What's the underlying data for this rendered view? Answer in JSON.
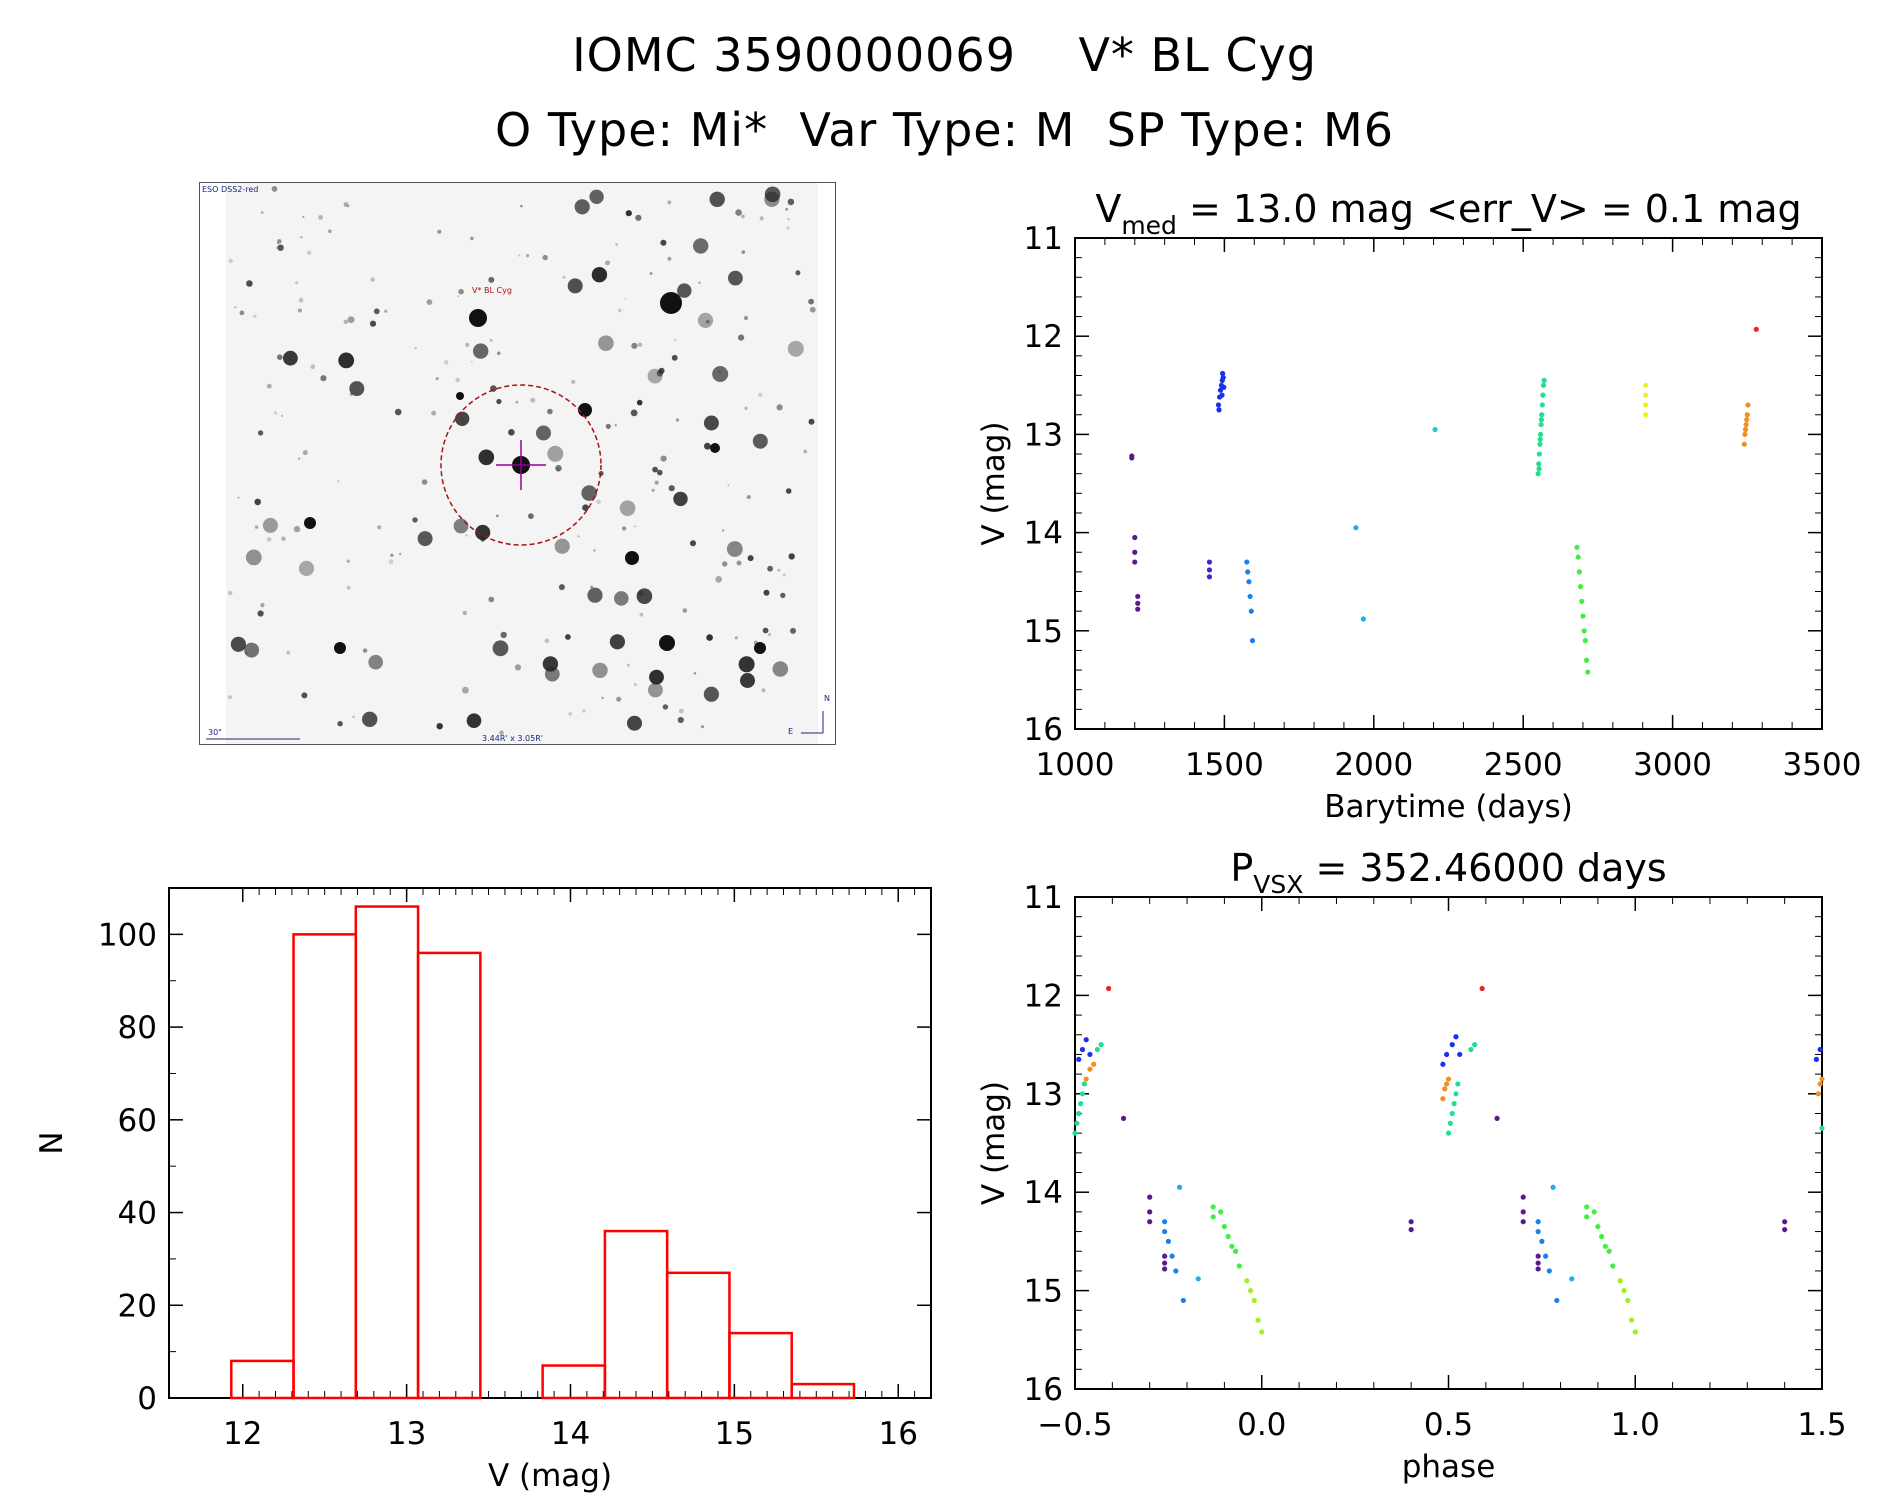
{
  "title": {
    "line1": "IOMC 3590000069    V* BL Cyg",
    "line2": "O Type: Mi*  Var Type: M  SP Type: M6"
  },
  "finder": {
    "survey_label": "ESO DSS2-red",
    "target_label": "V* BL Cyg",
    "scale_label": "30\"",
    "fov_label": "3.44R' x 3.05R'",
    "compass_north": "N",
    "compass_east": "E"
  },
  "chart_data": [
    {
      "id": "lightcurve",
      "type": "scatter",
      "title_main": "V",
      "title_sub": "med",
      "title_rest": " = 13.0 mag <err_V> = 0.1 mag",
      "xlabel": "Barytime (days)",
      "ylabel": "V (mag)",
      "xlim": [
        1000,
        3500
      ],
      "ylim": [
        11,
        16
      ],
      "y_inverted": true,
      "xticks": [
        1000,
        1500,
        2000,
        2500,
        3000,
        3500
      ],
      "yticks": [
        11,
        12,
        13,
        14,
        15,
        16
      ],
      "series": [
        {
          "name": "s1",
          "color": "#5a1a8c",
          "points": [
            [
              1190,
              13.22
            ],
            [
              1190,
              13.24
            ],
            [
              1200,
              14.05
            ],
            [
              1200,
              14.2
            ],
            [
              1200,
              14.3
            ],
            [
              1210,
              14.65
            ],
            [
              1210,
              14.72
            ],
            [
              1210,
              14.78
            ]
          ]
        },
        {
          "name": "s2",
          "color": "#3a2ad0",
          "points": [
            [
              1450,
              14.3
            ],
            [
              1450,
              14.38
            ],
            [
              1450,
              14.45
            ]
          ]
        },
        {
          "name": "s3",
          "color": "#1a2ff0",
          "points": [
            [
              1480,
              12.7
            ],
            [
              1484,
              12.62
            ],
            [
              1487,
              12.55
            ],
            [
              1490,
              12.5
            ],
            [
              1493,
              12.45
            ],
            [
              1496,
              12.42
            ],
            [
              1482,
              12.75
            ],
            [
              1492,
              12.6
            ],
            [
              1498,
              12.52
            ],
            [
              1494,
              12.38
            ]
          ]
        },
        {
          "name": "s4",
          "color": "#1a7ff0",
          "points": [
            [
              1575,
              14.3
            ],
            [
              1578,
              14.4
            ],
            [
              1582,
              14.5
            ],
            [
              1586,
              14.65
            ],
            [
              1590,
              14.8
            ],
            [
              1594,
              15.1
            ]
          ]
        },
        {
          "name": "s5",
          "color": "#1ab0f0",
          "points": [
            [
              1940,
              13.95
            ],
            [
              1965,
              14.88
            ]
          ]
        },
        {
          "name": "s6",
          "color": "#20d0d0",
          "points": [
            [
              2205,
              12.95
            ]
          ]
        },
        {
          "name": "s7",
          "color": "#20e090",
          "points": [
            [
              2550,
              13.4
            ],
            [
              2552,
              13.3
            ],
            [
              2554,
              13.2
            ],
            [
              2556,
              13.1
            ],
            [
              2558,
              13.0
            ],
            [
              2560,
              12.9
            ],
            [
              2562,
              12.8
            ],
            [
              2564,
              12.7
            ],
            [
              2566,
              12.6
            ],
            [
              2568,
              12.5
            ],
            [
              2570,
              12.45
            ],
            [
              2553,
              13.35
            ],
            [
              2557,
              13.05
            ],
            [
              2561,
              12.85
            ]
          ]
        },
        {
          "name": "s8",
          "color": "#40f040",
          "points": [
            [
              2680,
              14.15
            ],
            [
              2684,
              14.25
            ],
            [
              2688,
              14.4
            ],
            [
              2692,
              14.55
            ],
            [
              2696,
              14.7
            ],
            [
              2700,
              14.85
            ],
            [
              2704,
              15.0
            ],
            [
              2708,
              15.1
            ],
            [
              2712,
              15.3
            ],
            [
              2716,
              15.42
            ]
          ]
        },
        {
          "name": "s9",
          "color": "#f0f020",
          "points": [
            [
              2910,
              12.5
            ],
            [
              2910,
              12.6
            ],
            [
              2910,
              12.7
            ],
            [
              2910,
              12.8
            ]
          ]
        },
        {
          "name": "s10",
          "color": "#f09020",
          "points": [
            [
              3240,
              13.1
            ],
            [
              3242,
              13.0
            ],
            [
              3244,
              12.95
            ],
            [
              3246,
              12.9
            ],
            [
              3248,
              12.85
            ],
            [
              3250,
              12.8
            ],
            [
              3252,
              12.7
            ]
          ]
        },
        {
          "name": "s11",
          "color": "#f02020",
          "points": [
            [
              3280,
              11.93
            ]
          ]
        }
      ]
    },
    {
      "id": "histogram",
      "type": "bar",
      "xlabel": "V (mag)",
      "ylabel": "N",
      "xlim": [
        11.55,
        16.2
      ],
      "ylim": [
        0,
        110
      ],
      "xticks": [
        12,
        13,
        14,
        15,
        16
      ],
      "yticks": [
        0,
        20,
        40,
        60,
        80,
        100
      ],
      "bin_edges": [
        11.93,
        12.31,
        12.69,
        13.07,
        13.45,
        13.83,
        14.21,
        14.59,
        14.97,
        15.35,
        15.73
      ],
      "values": [
        8,
        100,
        106,
        96,
        0,
        7,
        36,
        27,
        14,
        3
      ],
      "bar_color": "#ff0000"
    },
    {
      "id": "phased",
      "type": "scatter",
      "title_main": "P",
      "title_sub": "VSX",
      "title_rest": " = 352.46000 days",
      "xlabel": "phase",
      "ylabel": "V (mag)",
      "xlim": [
        -0.5,
        1.5
      ],
      "ylim": [
        11,
        16
      ],
      "y_inverted": true,
      "xticks": [
        -0.5,
        0.0,
        0.5,
        1.0,
        1.5
      ],
      "xtick_labels": [
        "−0.5",
        "0.0",
        "0.5",
        "1.0",
        "1.5"
      ],
      "yticks": [
        11,
        12,
        13,
        14,
        15,
        16
      ],
      "series": [
        {
          "name": "p1",
          "color": "#f02020",
          "points": [
            [
              -0.41,
              11.93
            ],
            [
              0.59,
              11.93
            ]
          ]
        },
        {
          "name": "p2",
          "color": "#1a2ff0",
          "points": [
            [
              -0.49,
              12.65
            ],
            [
              -0.48,
              12.55
            ],
            [
              -0.47,
              12.45
            ],
            [
              -0.46,
              12.6
            ],
            [
              0.485,
              12.7
            ],
            [
              0.495,
              12.6
            ],
            [
              0.51,
              12.5
            ],
            [
              0.52,
              12.42
            ],
            [
              0.53,
              12.6
            ],
            [
              1.485,
              12.65
            ],
            [
              1.495,
              12.55
            ]
          ]
        },
        {
          "name": "p3",
          "color": "#f09020",
          "points": [
            [
              -0.47,
              12.85
            ],
            [
              -0.46,
              12.75
            ],
            [
              -0.45,
              12.7
            ],
            [
              0.485,
              13.05
            ],
            [
              0.49,
              12.95
            ],
            [
              0.495,
              12.9
            ],
            [
              0.5,
              12.85
            ],
            [
              1.49,
              13.0
            ],
            [
              1.495,
              12.9
            ],
            [
              1.5,
              12.85
            ]
          ]
        },
        {
          "name": "p4",
          "color": "#20e090",
          "points": [
            [
              -0.5,
              13.4
            ],
            [
              -0.495,
              13.3
            ],
            [
              -0.49,
              13.2
            ],
            [
              -0.485,
              13.1
            ],
            [
              -0.48,
              13.0
            ],
            [
              -0.475,
              12.9
            ],
            [
              -0.44,
              12.55
            ],
            [
              -0.43,
              12.5
            ],
            [
              0.5,
              13.4
            ],
            [
              0.505,
              13.3
            ],
            [
              0.51,
              13.2
            ],
            [
              0.515,
              13.1
            ],
            [
              0.52,
              13.0
            ],
            [
              0.525,
              12.9
            ],
            [
              0.56,
              12.55
            ],
            [
              0.57,
              12.5
            ],
            [
              1.5,
              13.35
            ]
          ]
        },
        {
          "name": "p5",
          "color": "#5a1a8c",
          "points": [
            [
              -0.37,
              13.25
            ],
            [
              0.63,
              13.25
            ],
            [
              -0.3,
              14.05
            ],
            [
              -0.3,
              14.2
            ],
            [
              -0.3,
              14.3
            ],
            [
              0.7,
              14.05
            ],
            [
              0.7,
              14.2
            ],
            [
              0.7,
              14.3
            ],
            [
              -0.26,
              14.65
            ],
            [
              -0.26,
              14.72
            ],
            [
              -0.26,
              14.78
            ],
            [
              0.74,
              14.65
            ],
            [
              0.74,
              14.72
            ],
            [
              0.74,
              14.78
            ],
            [
              0.4,
              14.3
            ],
            [
              0.4,
              14.38
            ],
            [
              1.4,
              14.3
            ],
            [
              1.4,
              14.38
            ]
          ]
        },
        {
          "name": "p6",
          "color": "#1a7ff0",
          "points": [
            [
              -0.26,
              14.3
            ],
            [
              -0.26,
              14.4
            ],
            [
              -0.25,
              14.5
            ],
            [
              -0.24,
              14.65
            ],
            [
              -0.23,
              14.8
            ],
            [
              -0.21,
              15.1
            ],
            [
              0.74,
              14.3
            ],
            [
              0.74,
              14.4
            ],
            [
              0.75,
              14.5
            ],
            [
              0.76,
              14.65
            ],
            [
              0.77,
              14.8
            ],
            [
              0.79,
              15.1
            ]
          ]
        },
        {
          "name": "p7",
          "color": "#1ab0f0",
          "points": [
            [
              -0.22,
              13.95
            ],
            [
              -0.17,
              14.88
            ],
            [
              0.78,
              13.95
            ],
            [
              0.83,
              14.88
            ]
          ]
        },
        {
          "name": "p8",
          "color": "#40f040",
          "points": [
            [
              -0.13,
              14.15
            ],
            [
              -0.13,
              14.25
            ],
            [
              -0.11,
              14.2
            ],
            [
              -0.1,
              14.35
            ],
            [
              -0.09,
              14.45
            ],
            [
              -0.08,
              14.55
            ],
            [
              -0.07,
              14.6
            ],
            [
              -0.06,
              14.75
            ],
            [
              0.87,
              14.15
            ],
            [
              0.87,
              14.25
            ],
            [
              0.89,
              14.2
            ],
            [
              0.9,
              14.35
            ],
            [
              0.91,
              14.45
            ],
            [
              0.92,
              14.55
            ],
            [
              0.93,
              14.6
            ],
            [
              0.94,
              14.75
            ]
          ]
        },
        {
          "name": "p9",
          "color": "#a0f020",
          "points": [
            [
              -0.04,
              14.9
            ],
            [
              -0.03,
              15.0
            ],
            [
              -0.02,
              15.1
            ],
            [
              -0.01,
              15.3
            ],
            [
              0.0,
              15.42
            ],
            [
              0.96,
              14.9
            ],
            [
              0.97,
              15.0
            ],
            [
              0.98,
              15.1
            ],
            [
              0.99,
              15.3
            ],
            [
              1.0,
              15.42
            ]
          ]
        }
      ]
    }
  ]
}
